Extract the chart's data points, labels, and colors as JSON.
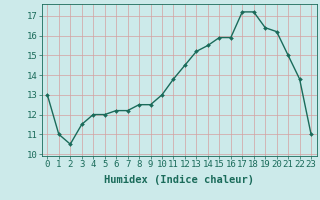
{
  "x": [
    0,
    1,
    2,
    3,
    4,
    5,
    6,
    7,
    8,
    9,
    10,
    11,
    12,
    13,
    14,
    15,
    16,
    17,
    18,
    19,
    20,
    21,
    22,
    23
  ],
  "y": [
    13.0,
    11.0,
    10.5,
    11.5,
    12.0,
    12.0,
    12.2,
    12.2,
    12.5,
    12.5,
    13.0,
    13.8,
    14.5,
    15.2,
    15.5,
    15.9,
    15.9,
    17.2,
    17.2,
    16.4,
    16.2,
    15.0,
    13.8,
    11.0
  ],
  "xlabel": "Humidex (Indice chaleur)",
  "xlim": [
    -0.5,
    23.5
  ],
  "ylim": [
    9.9,
    17.6
  ],
  "yticks": [
    10,
    11,
    12,
    13,
    14,
    15,
    16,
    17
  ],
  "xticks": [
    0,
    1,
    2,
    3,
    4,
    5,
    6,
    7,
    8,
    9,
    10,
    11,
    12,
    13,
    14,
    15,
    16,
    17,
    18,
    19,
    20,
    21,
    22,
    23
  ],
  "line_color": "#1a6b5a",
  "marker": "D",
  "marker_size": 2.0,
  "bg_color": "#cceaea",
  "grid_color": "#d4a0a0",
  "xlabel_fontsize": 7.5,
  "tick_fontsize": 6.5,
  "line_width": 1.0
}
